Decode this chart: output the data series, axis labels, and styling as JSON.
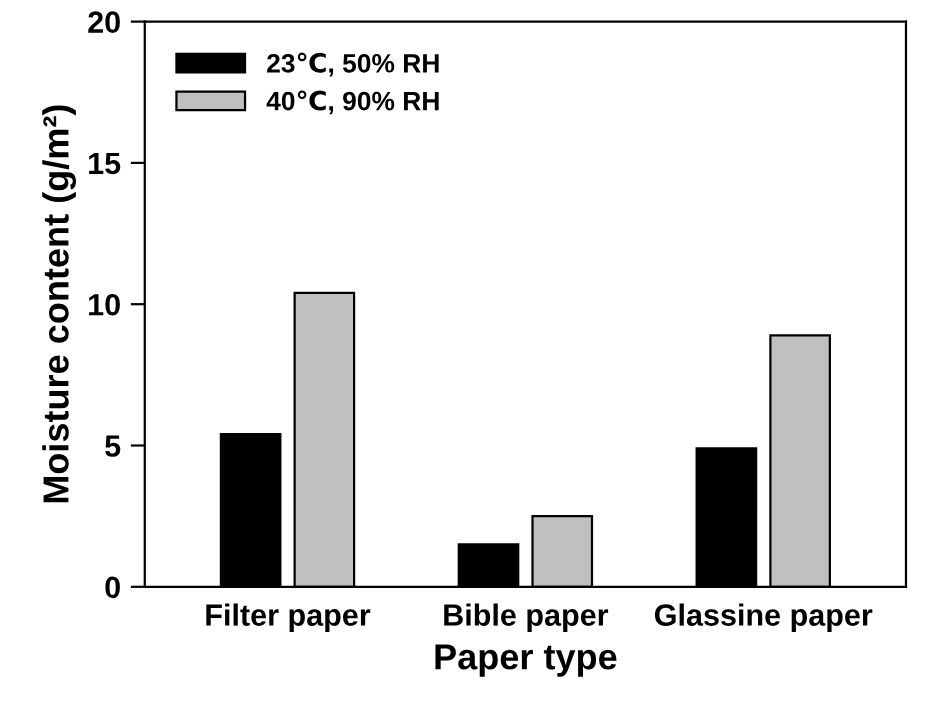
{
  "chart_data": {
    "type": "bar",
    "xlabel": "Paper type",
    "ylabel": "Moisture content (g/m²)",
    "categories": [
      "Filter paper",
      "Bible paper",
      "Glassine paper"
    ],
    "series": [
      {
        "name": "23℃, 50% RH",
        "color": "#000000",
        "values": [
          5.4,
          1.5,
          4.9
        ]
      },
      {
        "name": "40℃, 90% RH",
        "color": "#c0c0c0",
        "values": [
          10.4,
          2.5,
          8.9
        ]
      }
    ],
    "ylim": [
      0,
      20
    ],
    "yticks": [
      0,
      5,
      10,
      15,
      20
    ],
    "grid": false,
    "legend": "top left"
  }
}
